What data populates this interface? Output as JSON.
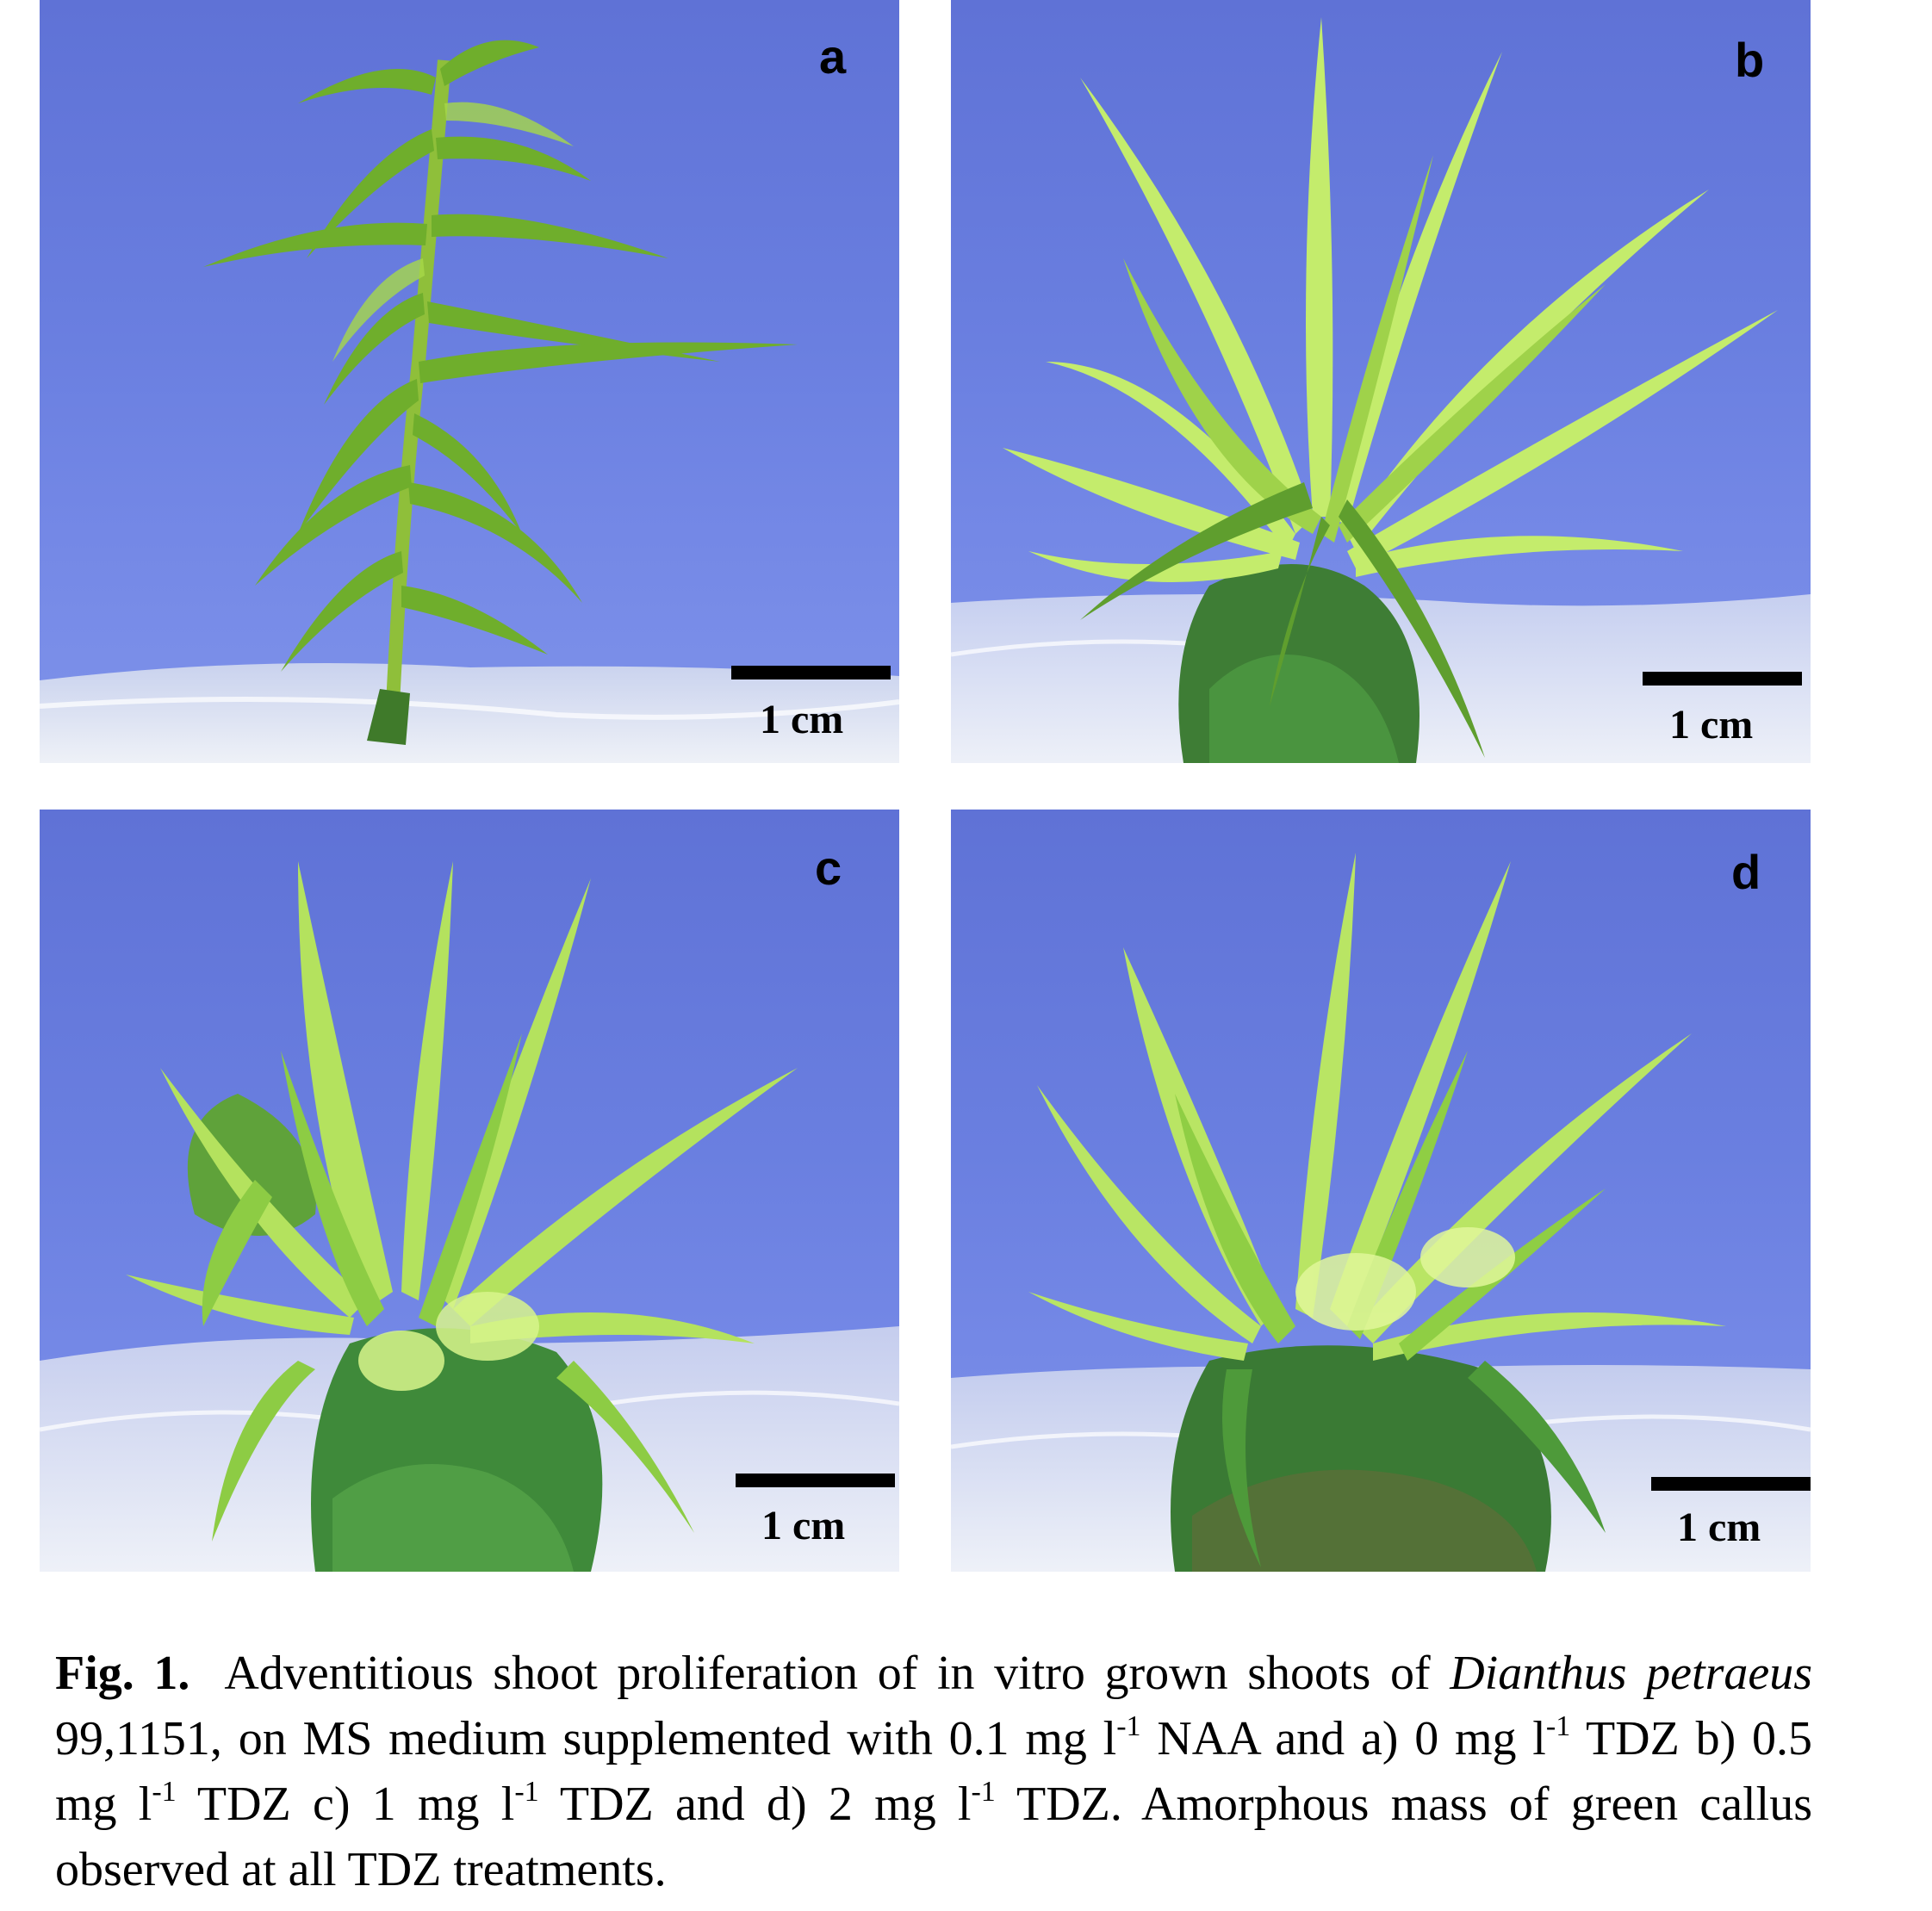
{
  "panels": [
    {
      "id": "a",
      "label": "a",
      "scale_label": "1 cm"
    },
    {
      "id": "b",
      "label": "b",
      "scale_label": "1 cm"
    },
    {
      "id": "c",
      "label": "c",
      "scale_label": "1 cm"
    },
    {
      "id": "d",
      "label": "d",
      "scale_label": "1 cm"
    }
  ],
  "caption": {
    "fig_label": "Fig. 1.",
    "t1": "Adventitious shoot proliferation of in vitro grown shoots of ",
    "species": "Dianthus petraeus",
    "t2": " 99,1151, on MS medium supplemented with 0.1 mg l",
    "sup": "-1",
    "t3": " NAA and  a) 0 mg l",
    "t4": " TDZ  b) 0.5 mg l",
    "t5": " TDZ  c) 1 mg l",
    "t6": " TDZ and d) 2 mg l",
    "t7": " TDZ. Amorphous mass of green callus observed at all TDZ treatments."
  },
  "colors": {
    "background_blue": "#6a7fe0",
    "leaf_green": "#7fbf3a",
    "leaf_light": "#c8f07a",
    "callus_dark": "#3f7a3a",
    "agar": "#dde4f2"
  }
}
